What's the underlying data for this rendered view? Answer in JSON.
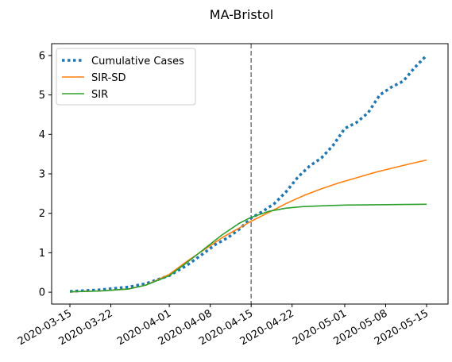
{
  "chart_data": {
    "type": "line",
    "title": "MA-Bristol",
    "xlabel": "",
    "ylabel": "",
    "x_domain": [
      "2020-03-15",
      "2020-05-15"
    ],
    "ylim": [
      -0.3,
      6.3
    ],
    "yticks": [
      0,
      1,
      2,
      3,
      4,
      5,
      6
    ],
    "xticks": [
      "2020-03-15",
      "2020-03-22",
      "2020-04-01",
      "2020-04-08",
      "2020-04-15",
      "2020-04-22",
      "2020-05-01",
      "2020-05-08",
      "2020-05-15"
    ],
    "vline": {
      "x": "2020-04-15",
      "color": "#808080",
      "style": "dashed"
    },
    "legend_position": "top-left",
    "series": [
      {
        "name": "Cumulative Cases",
        "color": "#1f77b4",
        "style": "dotted",
        "points": [
          [
            "2020-03-15",
            0.02
          ],
          [
            "2020-03-20",
            0.06
          ],
          [
            "2020-03-25",
            0.13
          ],
          [
            "2020-03-28",
            0.22
          ],
          [
            "2020-04-01",
            0.42
          ],
          [
            "2020-04-04",
            0.68
          ],
          [
            "2020-04-07",
            1.0
          ],
          [
            "2020-04-09",
            1.22
          ],
          [
            "2020-04-11",
            1.38
          ],
          [
            "2020-04-13",
            1.6
          ],
          [
            "2020-04-15",
            1.88
          ],
          [
            "2020-04-17",
            2.05
          ],
          [
            "2020-04-19",
            2.25
          ],
          [
            "2020-04-21",
            2.55
          ],
          [
            "2020-04-23",
            2.92
          ],
          [
            "2020-04-25",
            3.2
          ],
          [
            "2020-04-27",
            3.4
          ],
          [
            "2020-04-29",
            3.72
          ],
          [
            "2020-05-01",
            4.15
          ],
          [
            "2020-05-03",
            4.3
          ],
          [
            "2020-05-05",
            4.55
          ],
          [
            "2020-05-07",
            5.0
          ],
          [
            "2020-05-09",
            5.2
          ],
          [
            "2020-05-11",
            5.35
          ],
          [
            "2020-05-13",
            5.7
          ],
          [
            "2020-05-15",
            6.0
          ]
        ]
      },
      {
        "name": "SIR-SD",
        "color": "#ff7f0e",
        "style": "solid",
        "points": [
          [
            "2020-03-15",
            0.01
          ],
          [
            "2020-03-20",
            0.03
          ],
          [
            "2020-03-25",
            0.08
          ],
          [
            "2020-03-28",
            0.18
          ],
          [
            "2020-04-01",
            0.45
          ],
          [
            "2020-04-04",
            0.78
          ],
          [
            "2020-04-07",
            1.08
          ],
          [
            "2020-04-10",
            1.38
          ],
          [
            "2020-04-13",
            1.63
          ],
          [
            "2020-04-15",
            1.8
          ],
          [
            "2020-04-18",
            2.02
          ],
          [
            "2020-04-21",
            2.25
          ],
          [
            "2020-04-24",
            2.45
          ],
          [
            "2020-04-27",
            2.62
          ],
          [
            "2020-04-30",
            2.77
          ],
          [
            "2020-05-03",
            2.9
          ],
          [
            "2020-05-06",
            3.03
          ],
          [
            "2020-05-09",
            3.14
          ],
          [
            "2020-05-12",
            3.25
          ],
          [
            "2020-05-15",
            3.35
          ]
        ]
      },
      {
        "name": "SIR",
        "color": "#2ca02c",
        "style": "solid",
        "points": [
          [
            "2020-03-15",
            0.01
          ],
          [
            "2020-03-20",
            0.03
          ],
          [
            "2020-03-25",
            0.08
          ],
          [
            "2020-03-28",
            0.18
          ],
          [
            "2020-04-01",
            0.42
          ],
          [
            "2020-04-04",
            0.75
          ],
          [
            "2020-04-07",
            1.1
          ],
          [
            "2020-04-10",
            1.45
          ],
          [
            "2020-04-13",
            1.75
          ],
          [
            "2020-04-15",
            1.9
          ],
          [
            "2020-04-18",
            2.05
          ],
          [
            "2020-04-21",
            2.13
          ],
          [
            "2020-04-24",
            2.17
          ],
          [
            "2020-04-27",
            2.19
          ],
          [
            "2020-05-01",
            2.21
          ],
          [
            "2020-05-08",
            2.22
          ],
          [
            "2020-05-15",
            2.23
          ]
        ]
      }
    ]
  }
}
